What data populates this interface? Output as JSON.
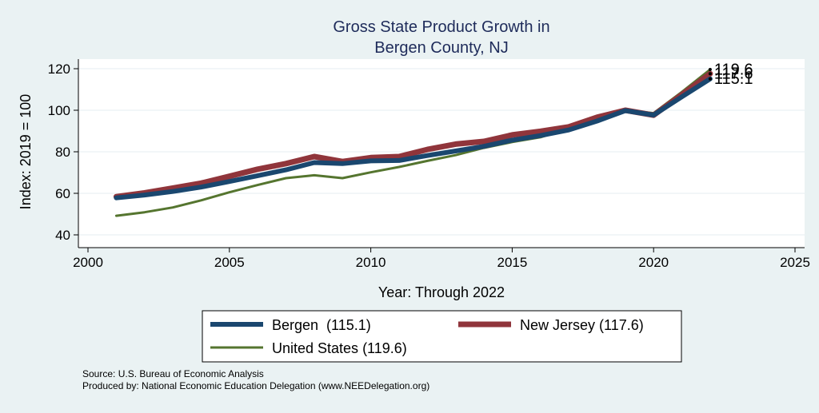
{
  "chart_data": {
    "type": "line",
    "title": [
      "Gross State Product Growth in",
      "Bergen County, NJ"
    ],
    "xlabel": "Year: Through 2022",
    "ylabel": "Index: 2019 = 100",
    "xlim": [
      2000,
      2025
    ],
    "ylim": [
      40,
      120
    ],
    "xticks": [
      2000,
      2005,
      2010,
      2015,
      2020,
      2025
    ],
    "yticks": [
      40,
      60,
      80,
      100,
      120
    ],
    "grid": "horizontal",
    "legend_placement": "bottom",
    "x": [
      2001,
      2002,
      2003,
      2004,
      2005,
      2006,
      2007,
      2008,
      2009,
      2010,
      2011,
      2012,
      2013,
      2014,
      2015,
      2016,
      2017,
      2018,
      2019,
      2020,
      2021,
      2022
    ],
    "series": [
      {
        "name": "Bergen",
        "legend": "Bergen  (115.1)",
        "color": "#1a476f",
        "values": [
          57.8,
          59.2,
          60.9,
          63.0,
          65.7,
          68.5,
          71.3,
          74.8,
          74.3,
          75.6,
          75.8,
          78.2,
          80.4,
          82.6,
          85.6,
          87.8,
          90.5,
          94.8,
          99.8,
          97.7,
          106.5,
          115.1
        ],
        "end_label": "115.1"
      },
      {
        "name": "New Jersey",
        "legend": "New Jersey (117.6)",
        "color": "#90353b",
        "values": [
          58.4,
          60.2,
          62.5,
          64.9,
          68.2,
          71.6,
          74.3,
          77.7,
          75.3,
          77.2,
          77.7,
          81.1,
          83.7,
          85.0,
          88.1,
          89.9,
          92.0,
          96.6,
          100.0,
          97.6,
          107.5,
          117.6
        ],
        "end_label": "117.6"
      },
      {
        "name": "United States",
        "legend": "United States (119.6)",
        "color": "#55752f",
        "values": [
          49.2,
          50.9,
          53.2,
          56.6,
          60.5,
          64.0,
          67.3,
          68.7,
          67.3,
          70.1,
          72.7,
          75.6,
          78.4,
          81.9,
          84.7,
          87.0,
          91.2,
          95.9,
          100.0,
          98.6,
          108.8,
          119.6
        ],
        "end_label": "119.6"
      }
    ],
    "notes": [
      "Source: U.S. Bureau of Economic Analysis",
      "Produced by: National Economic Education Delegation (www.NEEDelegation.org)"
    ]
  }
}
